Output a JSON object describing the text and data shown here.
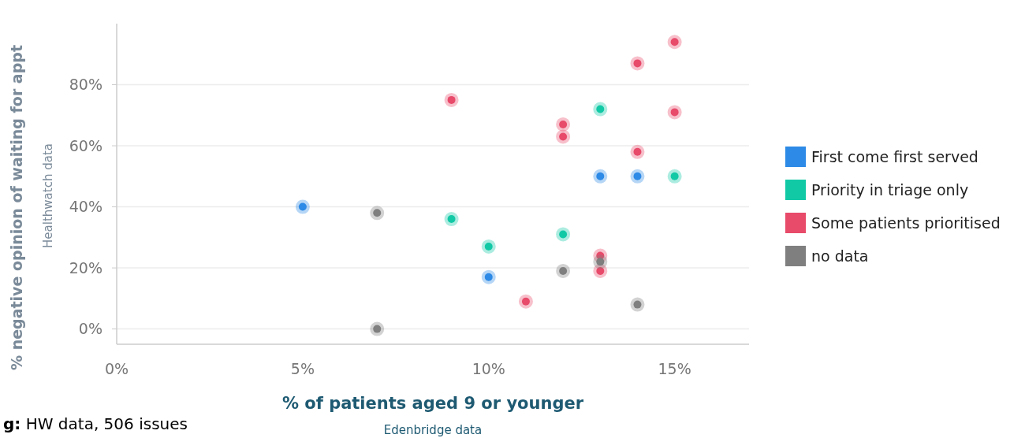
{
  "chart_data": {
    "type": "scatter",
    "xlabel": "% of patients aged 9 or younger",
    "ylabel": "% negative opinion of waiting for appt",
    "annotations": [
      "Healthwatch data",
      "Edenbridge data",
      "g: HW data, 506 issues"
    ],
    "xlim": [
      0,
      17
    ],
    "xticks": [
      {
        "value": 0,
        "label": "0%"
      },
      {
        "value": 5,
        "label": "5%"
      },
      {
        "value": 10,
        "label": "10%"
      },
      {
        "value": 15,
        "label": "15%"
      }
    ],
    "ylim": [
      -5,
      100
    ],
    "yticks": [
      {
        "value": 0,
        "label": "0%"
      },
      {
        "value": 20,
        "label": "20%"
      },
      {
        "value": 40,
        "label": "40%"
      },
      {
        "value": 60,
        "label": "60%"
      },
      {
        "value": 80,
        "label": "80%"
      }
    ],
    "grid": "y",
    "legend": "right",
    "marker": "circle",
    "series": [
      {
        "name": "First come first served",
        "color": "#2d8ae6",
        "x": [
          5,
          10,
          13,
          14
        ],
        "values": [
          40,
          17,
          50,
          50
        ]
      },
      {
        "name": "Priority in triage only",
        "color": "#12c9a6",
        "x": [
          9,
          10,
          12,
          13,
          15
        ],
        "values": [
          36,
          27,
          31,
          72,
          50
        ]
      },
      {
        "name": "Some patients prioritised",
        "color": "#e84a6a",
        "x": [
          9,
          11,
          12,
          12,
          13,
          13,
          14,
          14,
          15,
          15
        ],
        "values": [
          75,
          9,
          67,
          63,
          24,
          19,
          87,
          58,
          94,
          71
        ]
      },
      {
        "name": "no data",
        "color": "#7f7f7f",
        "x": [
          7,
          7,
          12,
          13,
          14
        ],
        "values": [
          38,
          0,
          19,
          22,
          8
        ]
      }
    ]
  }
}
